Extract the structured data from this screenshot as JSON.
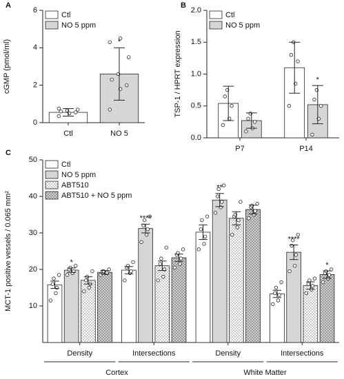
{
  "chart_data": [
    {
      "type": "bar",
      "panel": "A",
      "ylabel": "cGMP (pmol/ml)",
      "categories": [
        "Ctl",
        "NO 5"
      ],
      "legend": [
        "Ctl",
        "NO 5 ppm"
      ],
      "legend_position": "upper left",
      "colors": [
        "#ffffff",
        "#d6d6d6"
      ],
      "values": [
        0.55,
        2.6
      ],
      "errors": [
        0.2,
        1.4
      ],
      "points": [
        [
          0.35,
          0.5,
          0.55,
          0.6,
          0.65,
          0.7,
          0.75
        ],
        [
          0.7,
          1.8,
          2.0,
          2.3,
          2.6,
          3.5,
          4.3,
          4.5
        ]
      ],
      "significance": [
        null,
        "*"
      ],
      "ylim": [
        0,
        6
      ],
      "yticks": [
        0,
        2,
        4,
        6
      ]
    },
    {
      "type": "bar",
      "panel": "B",
      "ylabel": "TSP-1 / HPRT expression",
      "categories": [
        "P7",
        "P14"
      ],
      "legend_position": "upper left",
      "series": [
        {
          "name": "Ctl",
          "color": "#ffffff",
          "values": [
            0.54,
            1.1
          ],
          "errors": [
            0.27,
            0.4
          ],
          "points": [
            [
              0.2,
              0.3,
              0.5,
              0.65,
              0.75
            ],
            [
              0.5,
              0.85,
              1.2,
              1.3,
              1.5
            ]
          ],
          "significance": [
            null,
            null
          ]
        },
        {
          "name": "NO 5 ppm",
          "color": "#d6d6d6",
          "values": [
            0.27,
            0.52
          ],
          "errors": [
            0.12,
            0.3
          ],
          "points": [
            [
              0.1,
              0.15,
              0.25,
              0.3,
              0.38
            ],
            [
              0.05,
              0.3,
              0.5,
              0.6,
              0.75
            ]
          ],
          "significance": [
            null,
            "*"
          ]
        }
      ],
      "ylim": [
        0,
        2
      ],
      "yticks": [
        {
          "value": 0,
          "label": "0.0"
        },
        {
          "value": 0.5,
          "label": "0.5"
        },
        {
          "value": 1,
          "label": "1.0"
        },
        {
          "value": 1.5,
          "label": "1.5"
        },
        {
          "value": 2,
          "label": "2.0"
        }
      ]
    },
    {
      "type": "bar",
      "panel": "C",
      "ylabel": "MCT-1 positive vessels / 0.065 mm²",
      "categories": [
        "Density",
        "Intersections",
        "Density",
        "Intersections"
      ],
      "groups": [
        "Cortex",
        "White Matter"
      ],
      "legend_position": "upper left",
      "series": [
        {
          "name": "Ctl",
          "color": "#ffffff",
          "pattern": null,
          "values": [
            15.8,
            19.8,
            30.2,
            13.3
          ],
          "errors": [
            1,
            1,
            2,
            1
          ],
          "points": [
            [
              11.5,
              13.5,
              15,
              16,
              17.5,
              18.5
            ],
            [
              17,
              19,
              19.5,
              20.5,
              21,
              22
            ],
            [
              25.5,
              27,
              29,
              31,
              33.5,
              34.5
            ],
            [
              10.5,
              11.5,
              13,
              13.5,
              15,
              16.5
            ]
          ],
          "significance": [
            null,
            null,
            null,
            null
          ]
        },
        {
          "name": "NO 5 ppm",
          "color": "#d6d6d6",
          "pattern": null,
          "values": [
            19.8,
            31.2,
            39,
            24.7
          ],
          "errors": [
            0.6,
            1.2,
            1.8,
            2
          ],
          "points": [
            [
              18.5,
              19,
              19.5,
              20,
              20.5,
              21
            ],
            [
              27.5,
              29.5,
              31,
              32,
              33.5,
              34.5
            ],
            [
              35.5,
              37,
              38.5,
              40,
              42,
              43
            ],
            [
              19.5,
              21,
              24,
              26.5,
              28,
              29.5
            ]
          ],
          "significance": [
            "*",
            "****",
            "**",
            "****"
          ]
        },
        {
          "name": "ABT510",
          "color": "#ffffff",
          "pattern": "dots",
          "values": [
            17,
            21,
            34,
            15.6
          ],
          "errors": [
            1,
            1.3,
            1.8,
            1
          ],
          "points": [
            [
              14,
              15,
              16,
              17,
              18,
              19.5
            ],
            [
              17,
              18,
              20,
              21.5,
              23,
              26
            ],
            [
              29.5,
              31.5,
              33.5,
              34.5,
              35,
              38.5
            ],
            [
              13.5,
              14.5,
              15.5,
              16,
              17,
              17.5
            ]
          ],
          "significance": [
            null,
            null,
            null,
            null
          ]
        },
        {
          "name": "ABT510 + NO 5 ppm",
          "color": "#d6d6d6",
          "pattern": "crosshatch",
          "values": [
            19.2,
            23.2,
            36.4,
            18.6
          ],
          "errors": [
            0.5,
            1,
            1.2,
            1
          ],
          "points": [
            [
              18.5,
              19,
              19,
              19.5,
              19.5,
              20
            ],
            [
              20.5,
              21.5,
              23,
              24,
              24.5,
              25.5
            ],
            [
              34,
              35,
              36,
              37,
              37.5,
              38
            ],
            [
              16.5,
              17.5,
              18.5,
              19,
              19.5,
              20
            ]
          ],
          "significance": [
            null,
            null,
            null,
            "*"
          ]
        }
      ],
      "ylim": [
        0,
        50
      ],
      "yticks": [
        10,
        20,
        30,
        40,
        50
      ]
    }
  ]
}
